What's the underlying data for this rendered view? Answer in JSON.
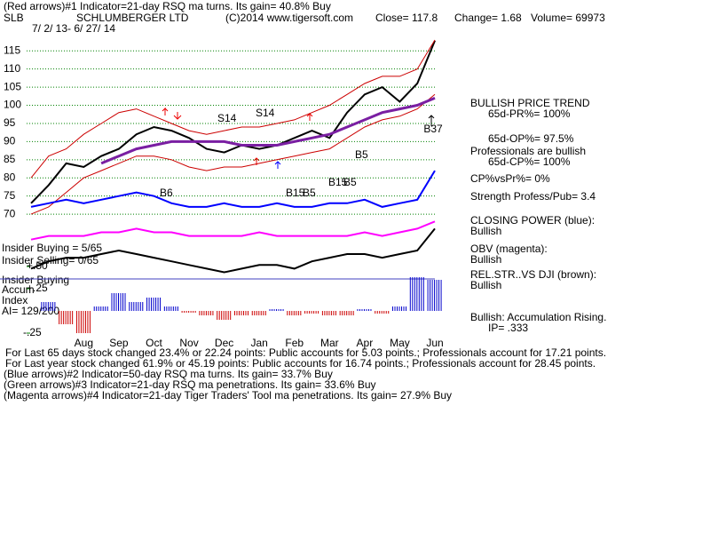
{
  "header": {
    "line1": "(Red arrows)#1 Indicator=21-day RSQ ma turns. Its gain= 40.8% Buy",
    "symbol": "SLB",
    "company": "SCHLUMBERGER LTD",
    "copyright": "(C)2014 www.tigersoft.com",
    "close": "Close= 117.8",
    "change": "Change= 1.68",
    "volume": "Volume= 69973",
    "dates": "7/ 2/ 13- 6/ 27/ 14"
  },
  "left_labels": [
    "Insider Buying = 5/65",
    "Insider Selling= 0/65",
    "Insider Buying",
    "Accum",
    "Index",
    "AI= 129/200"
  ],
  "right_panel": [
    "BULLISH PRICE TREND",
    "65d-PR%= 100%",
    "65d-OP%= 97.5%",
    "Professionals are bullish",
    "65d-CP%= 100%",
    "CP%vsPr%=  0%",
    "Strength Profess/Pub= 3.4",
    "CLOSING POWER (blue):",
    "Bullish",
    "OBV (magenta):",
    "Bullish",
    "REL.STR..VS DJI (brown):",
    "Bullish",
    "Bullish: Accumulation Rising.",
    "IP=  .333"
  ],
  "footer": [
    "For Last 65 days stock changed  23.4% or  22.24 points:  Public accounts for  5.03 points.;  Professionals account for  17.21 points.",
    "For Last year stock changed  61.9% or  45.19 points:  Public accounts for  16.74 points.;  Professionals account for  28.45 points.",
    "(Blue arrows)#2 Indicator=50-day RSQ ma turns. Its gain= 33.7% Buy",
    "(Green arrows)#3 Indicator=21-day RSQ ma penetrations. Its gain= 33.6% Buy",
    "(Magenta arrows)#4 Indicator=21-day Tiger Traders' Tool ma penetrations. Its gain= 27.9% Buy"
  ],
  "chart_data": {
    "type": "line",
    "categories": [
      null,
      null,
      null,
      "Aug",
      null,
      "Sep",
      null,
      "Oct",
      null,
      "Nov",
      null,
      "Dec",
      null,
      "Jan",
      null,
      "Feb",
      null,
      "Mar",
      null,
      "Apr",
      null,
      "May",
      null,
      "Jun"
    ],
    "ylim": [
      36,
      118
    ],
    "yticks": [
      70,
      75,
      80,
      85,
      90,
      95,
      100,
      105,
      110,
      115
    ],
    "y2lim": [
      -0.3,
      3.05
    ],
    "y2ticks": [
      {
        "value": 0.5,
        "label": "+.50"
      },
      {
        "value": 0.25,
        "label": "+.25"
      },
      {
        "value": -0.25,
        "label": "-.25"
      }
    ],
    "grid": true,
    "annotations": [
      "S14",
      "S14",
      "B6",
      "B15",
      "B5",
      "B15",
      "B5",
      "B5",
      "B37"
    ],
    "series": [
      {
        "color": "#000000",
        "values": [
          73,
          78,
          84,
          83,
          86,
          88,
          92,
          94,
          93,
          91,
          88,
          87,
          89,
          88,
          89,
          91,
          93,
          91,
          98,
          103,
          105,
          101,
          106,
          117.8
        ]
      },
      {
        "color": "#cc0000",
        "values": [
          80,
          86,
          88,
          92,
          95,
          98,
          99,
          97,
          95,
          93,
          92,
          93,
          94,
          94,
          95,
          96,
          98,
          100,
          103,
          106,
          108,
          108,
          110,
          118
        ]
      },
      {
        "color": "#cc0000",
        "values": [
          70,
          72,
          76,
          80,
          82,
          84,
          86,
          86,
          85,
          83,
          82,
          83,
          83,
          84,
          85,
          86,
          87,
          88,
          91,
          94,
          96,
          97,
          99,
          103
        ]
      },
      {
        "color": "#7a1fa2",
        "values": [
          null,
          null,
          null,
          null,
          84,
          86,
          88,
          89,
          90,
          90,
          90,
          90,
          89,
          89,
          89,
          90,
          91,
          92,
          94,
          96,
          98,
          99,
          100,
          102
        ]
      },
      {
        "color": "#0000ff",
        "values": [
          72,
          73,
          74,
          73,
          74,
          75,
          76,
          75,
          73,
          72,
          72,
          73,
          72,
          72,
          73,
          72,
          72,
          73,
          73,
          74,
          72,
          73,
          74,
          82
        ]
      },
      {
        "color": "#ff00ff",
        "values": [
          63,
          64,
          64,
          64,
          65,
          65,
          66,
          65,
          65,
          64,
          64,
          64,
          64,
          65,
          64,
          64,
          64,
          64,
          64,
          65,
          64,
          65,
          66,
          68
        ]
      },
      {
        "color": "#000000",
        "values": [
          55,
          57,
          58,
          58,
          59,
          60,
          59,
          58,
          57,
          56,
          55,
          54,
          55,
          56,
          56,
          55,
          57,
          58,
          59,
          59,
          58,
          59,
          60,
          66
        ]
      },
      {
        "color": "#0000cc",
        "negative_color": "#cc0000",
        "axis": "y2",
        "style": "bar",
        "values": [
          0,
          0.1,
          -0.15,
          -0.25,
          0.05,
          0.2,
          0.1,
          0.15,
          0.05,
          -0.02,
          -0.05,
          -0.1,
          -0.05,
          -0.05,
          0.02,
          -0.05,
          -0.03,
          -0.05,
          -0.05,
          0.02,
          -0.03,
          0.05,
          0.38,
          0.35
        ]
      }
    ]
  }
}
